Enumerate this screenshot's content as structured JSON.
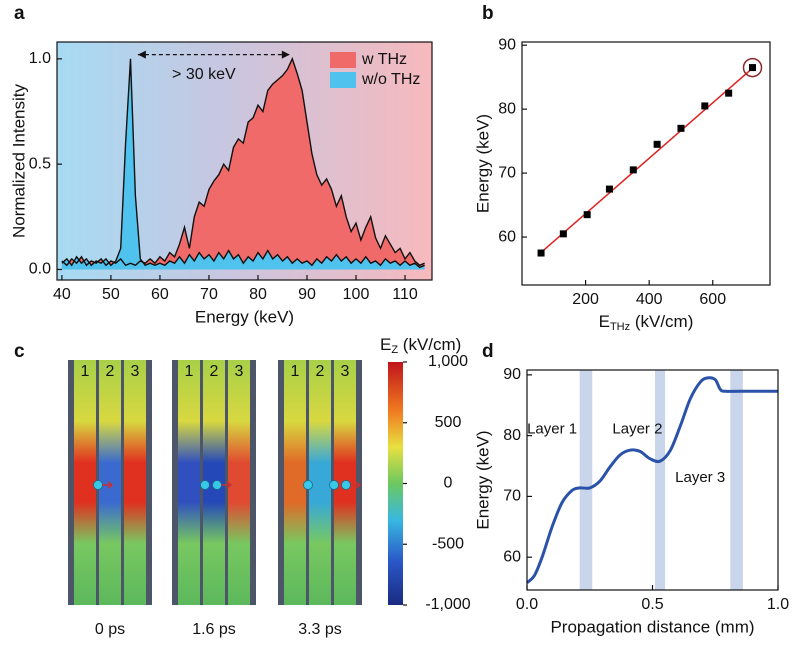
{
  "chart_data": [
    {
      "type": "area",
      "panel": "a",
      "xlabel": "Energy (keV)",
      "ylabel": "Normalized Intensity",
      "annotation": "> 30 keV",
      "x": [
        40,
        41,
        42,
        43,
        44,
        45,
        46,
        47,
        48,
        49,
        50,
        51,
        52,
        53,
        54,
        55,
        56,
        57,
        58,
        59,
        60,
        61,
        62,
        63,
        64,
        65,
        66,
        67,
        68,
        69,
        70,
        71,
        72,
        73,
        74,
        75,
        76,
        77,
        78,
        79,
        80,
        81,
        82,
        83,
        84,
        85,
        86,
        87,
        88,
        89,
        90,
        91,
        92,
        93,
        94,
        95,
        96,
        97,
        98,
        99,
        100,
        101,
        102,
        103,
        104,
        105,
        106,
        107,
        108,
        109,
        110,
        111,
        112,
        113,
        114
      ],
      "series": [
        {
          "name": "w THz",
          "color": "#f06a6a",
          "values": [
            0.04,
            0.02,
            0.05,
            0.03,
            0.06,
            0.02,
            0.04,
            0.03,
            0.05,
            0.02,
            0.04,
            0.03,
            0.05,
            0.02,
            0.03,
            0.02,
            0.04,
            0.03,
            0.05,
            0.03,
            0.06,
            0.04,
            0.08,
            0.06,
            0.12,
            0.2,
            0.1,
            0.25,
            0.32,
            0.3,
            0.38,
            0.42,
            0.45,
            0.5,
            0.47,
            0.58,
            0.62,
            0.6,
            0.7,
            0.72,
            0.78,
            0.75,
            0.85,
            0.88,
            0.9,
            0.92,
            0.95,
            1.0,
            0.93,
            0.85,
            0.7,
            0.55,
            0.45,
            0.4,
            0.43,
            0.38,
            0.3,
            0.35,
            0.25,
            0.18,
            0.22,
            0.14,
            0.2,
            0.25,
            0.15,
            0.1,
            0.16,
            0.12,
            0.08,
            0.1,
            0.05,
            0.08,
            0.04,
            0.02,
            0.03
          ]
        },
        {
          "name": "w/o THz",
          "color": "#4fc3ee",
          "values": [
            0.03,
            0.05,
            0.02,
            0.06,
            0.03,
            0.05,
            0.02,
            0.04,
            0.03,
            0.05,
            0.02,
            0.04,
            0.1,
            0.6,
            1.0,
            0.35,
            0.05,
            0.02,
            0.03,
            0.02,
            0.03,
            0.02,
            0.04,
            0.03,
            0.06,
            0.03,
            0.07,
            0.04,
            0.08,
            0.05,
            0.07,
            0.04,
            0.08,
            0.05,
            0.09,
            0.05,
            0.07,
            0.03,
            0.06,
            0.04,
            0.08,
            0.05,
            0.09,
            0.05,
            0.07,
            0.04,
            0.06,
            0.03,
            0.05,
            0.03,
            0.04,
            0.02,
            0.05,
            0.03,
            0.06,
            0.04,
            0.07,
            0.04,
            0.06,
            0.03,
            0.05,
            0.03,
            0.06,
            0.03,
            0.04,
            0.02,
            0.05,
            0.03,
            0.04,
            0.02,
            0.04,
            0.02,
            0.03,
            0.01,
            0.02
          ]
        }
      ],
      "xlim": [
        39,
        115.5
      ],
      "ylim": [
        -0.05,
        1.08
      ],
      "xticks": [
        40,
        50,
        60,
        70,
        80,
        90,
        100,
        110
      ],
      "yticks": [
        {
          "value": 0,
          "label": "0.0"
        },
        {
          "value": 0.5,
          "label": "0.5"
        },
        {
          "value": 1,
          "label": "1.0"
        }
      ],
      "legend": "upper right"
    },
    {
      "type": "scatter",
      "panel": "b",
      "xlabel_parts": [
        "E",
        "THz",
        " (kV/cm)"
      ],
      "ylabel": "Energy (keV)",
      "x": [
        60,
        130,
        205,
        275,
        350,
        425,
        500,
        575,
        650,
        725
      ],
      "values": [
        57.5,
        60.5,
        63.5,
        67.5,
        70.5,
        74.5,
        77,
        80.5,
        82.5,
        86.5
      ],
      "color": "#000000",
      "fit_color": "#e02020",
      "xlim": [
        0,
        780
      ],
      "ylim": [
        52.5,
        90.5
      ],
      "xticks": [
        200,
        400,
        600
      ],
      "yticks": [
        60,
        70,
        80,
        90
      ]
    },
    {
      "type": "heatmap",
      "panel": "c",
      "colorbar_label_parts": [
        "E",
        "Z",
        " (kV/cm)"
      ],
      "zlim": [
        -1000,
        1000
      ],
      "zticks": [
        {
          "value": 1000,
          "label": "1,000"
        },
        500,
        0,
        -500,
        {
          "value": -1000,
          "label": "-1,000"
        }
      ],
      "snapshots": [
        {
          "time": "0 ps",
          "layers": [
            "1",
            "2",
            "3"
          ]
        },
        {
          "time": "1.6 ps",
          "layers": [
            "1",
            "2",
            "3"
          ]
        },
        {
          "time": "3.3 ps",
          "layers": [
            "1",
            "2",
            "3"
          ]
        }
      ]
    },
    {
      "type": "line",
      "panel": "d",
      "xlabel": "Propagation distance (mm)",
      "ylabel": "Energy (keV)",
      "x": [
        0,
        0.03,
        0.06,
        0.1,
        0.14,
        0.18,
        0.21,
        0.25,
        0.29,
        0.33,
        0.37,
        0.41,
        0.45,
        0.49,
        0.53,
        0.57,
        0.61,
        0.65,
        0.69,
        0.72,
        0.75,
        0.77,
        0.79,
        0.85,
        1.0
      ],
      "values": [
        55.8,
        57,
        60,
        65,
        69,
        71,
        71.4,
        71.4,
        72.5,
        74.8,
        76.8,
        77.6,
        77.4,
        76.2,
        75.8,
        77.5,
        81.5,
        86,
        88.8,
        89.5,
        89.2,
        87.6,
        87.3,
        87.3,
        87.3
      ],
      "color": "#2a52a8",
      "layers": [
        {
          "label": "Layer 1",
          "range": [
            0.21,
            0.26
          ]
        },
        {
          "label": "Layer 2",
          "range": [
            0.51,
            0.55
          ]
        },
        {
          "label": "Layer 3",
          "range": [
            0.81,
            0.86
          ]
        }
      ],
      "xlim": [
        0,
        1
      ],
      "ylim": [
        54.6,
        90.8
      ],
      "xticks": [
        {
          "value": 0,
          "label": "0.0"
        },
        {
          "value": 0.5,
          "label": "0.5"
        },
        {
          "value": 1,
          "label": "1.0"
        }
      ],
      "yticks": [
        60,
        70,
        80,
        90
      ]
    }
  ]
}
